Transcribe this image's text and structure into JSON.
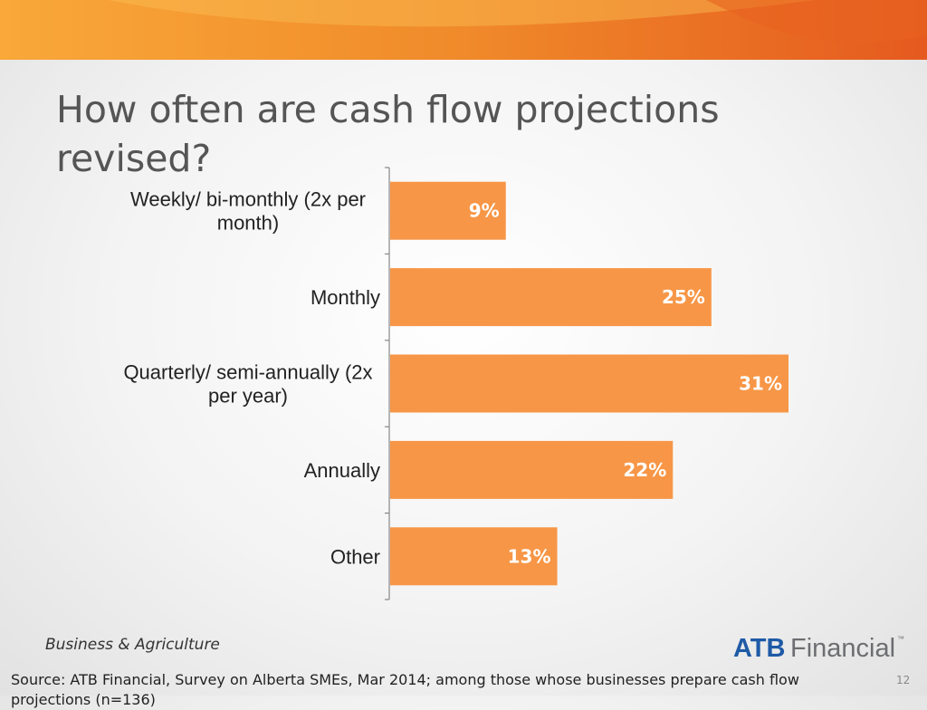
{
  "slide": {
    "title": "How often are cash flow projections revised?",
    "division": "Business & Agriculture",
    "brand": {
      "primary": "ATB",
      "secondary": "Financial",
      "mark": "™"
    },
    "source": "Source:  ATB Financial, Survey on Alberta SMEs, Mar 2014; among those whose businesses prepare cash flow projections (n=136)",
    "page_number": "12"
  },
  "colors": {
    "bar": "#F79646",
    "banner_light": "#F9A839",
    "banner_dark": "#E55A1F",
    "brand_blue": "#1F5AA6",
    "brand_gray": "#6D6E71"
  },
  "chart_data": {
    "type": "bar",
    "orientation": "horizontal",
    "categories": [
      [
        "Weekly/ bi-monthly (2x per",
        "month)"
      ],
      [
        "Monthly"
      ],
      [
        "Quarterly/ semi-annually (2x",
        "per year)"
      ],
      [
        "Annually"
      ],
      [
        "Other"
      ]
    ],
    "values": [
      9,
      25,
      31,
      22,
      13
    ],
    "labels": [
      "9%",
      "25%",
      "31%",
      "22%",
      "13%"
    ],
    "value_unit": "%",
    "xlim": [
      0,
      31
    ],
    "grid": false,
    "legend": "none"
  }
}
